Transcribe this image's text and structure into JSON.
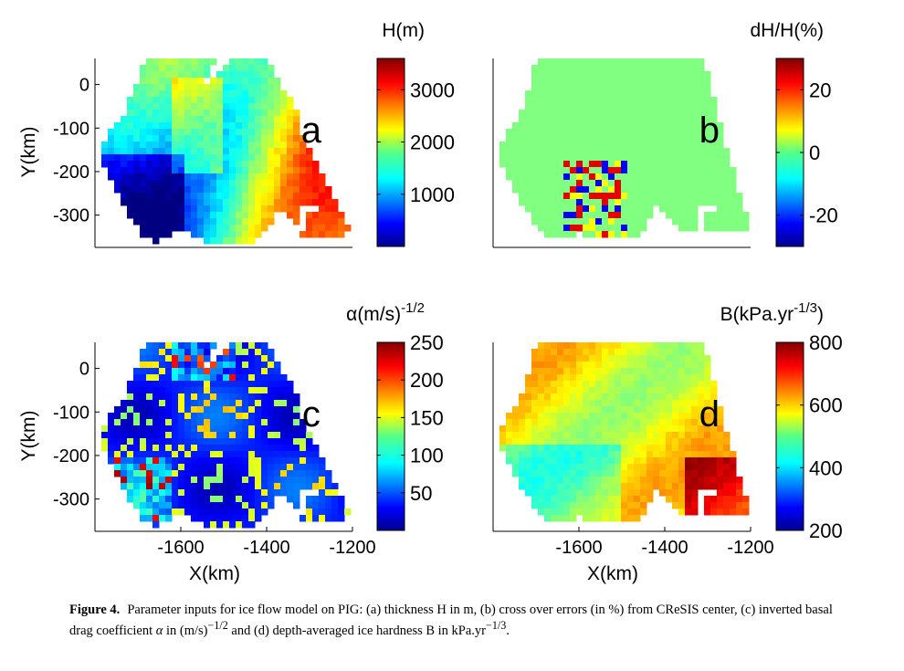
{
  "chart_data": [
    {
      "type": "heatmap",
      "panel_letter": "a",
      "colorbar_label": "H(m)",
      "colorbar_ticks": [
        "1000",
        "2000",
        "3000"
      ],
      "colorbar_tick_values": [
        1000,
        2000,
        3000
      ],
      "colorbar_range": [
        0,
        3600
      ],
      "field": "thickness",
      "ylabel": "Y(km)",
      "xlabel": "",
      "xlim": [
        -1800,
        -1200
      ],
      "ylim": [
        -370,
        60
      ],
      "xticks": [],
      "yticks": [
        {
          "value": 0,
          "label": "0"
        },
        {
          "value": -100,
          "label": "-100"
        },
        {
          "value": -200,
          "label": "-200"
        },
        {
          "value": -300,
          "label": "-300"
        }
      ]
    },
    {
      "type": "heatmap",
      "panel_letter": "b",
      "colorbar_label": "dH/H(%)",
      "colorbar_ticks": [
        "-20",
        "0",
        "20"
      ],
      "colorbar_tick_values": [
        -20,
        0,
        20
      ],
      "colorbar_range": [
        -30,
        30
      ],
      "field": "crossover",
      "ylabel": "",
      "xlabel": "",
      "xlim": [
        -1800,
        -1200
      ],
      "ylim": [
        -370,
        60
      ],
      "xticks": [],
      "yticks": []
    },
    {
      "type": "heatmap",
      "panel_letter": "c",
      "colorbar_label": "α(m/s)",
      "colorbar_label_exp": "-1/2",
      "colorbar_ticks": [
        "50",
        "100",
        "150",
        "200",
        "250"
      ],
      "colorbar_tick_values": [
        50,
        100,
        150,
        200,
        250
      ],
      "colorbar_range": [
        0,
        250
      ],
      "field": "drag",
      "ylabel": "Y(km)",
      "xlabel": "X(km)",
      "xlim": [
        -1800,
        -1200
      ],
      "ylim": [
        -370,
        60
      ],
      "xticks": [
        {
          "value": -1600,
          "label": "-1600"
        },
        {
          "value": -1400,
          "label": "-1400"
        },
        {
          "value": -1200,
          "label": "-1200"
        }
      ],
      "yticks": [
        {
          "value": 0,
          "label": "0"
        },
        {
          "value": -100,
          "label": "-100"
        },
        {
          "value": -200,
          "label": "-200"
        },
        {
          "value": -300,
          "label": "-300"
        }
      ]
    },
    {
      "type": "heatmap",
      "panel_letter": "d",
      "colorbar_label": "B(kPa.yr",
      "colorbar_label_exp": "-1/3",
      "colorbar_label_close": ")",
      "colorbar_ticks": [
        "200",
        "400",
        "600",
        "800"
      ],
      "colorbar_tick_values": [
        200,
        400,
        600,
        800
      ],
      "colorbar_range": [
        200,
        800
      ],
      "field": "hardness",
      "ylabel": "",
      "xlabel": "X(km)",
      "xlim": [
        -1800,
        -1200
      ],
      "ylim": [
        -370,
        60
      ],
      "xticks": [
        {
          "value": -1600,
          "label": "-1600"
        },
        {
          "value": -1400,
          "label": "-1400"
        },
        {
          "value": -1200,
          "label": "-1200"
        }
      ],
      "yticks": []
    }
  ],
  "caption": {
    "label": "Figure 4.",
    "p1": "Parameter inputs for ice flow model on PIG: (a) thickness H in m, (b) cross over errors (in %) from CReSIS center, (c) inverted basal drag coefficient ",
    "alpha": "α",
    "p2": " in (m/s)",
    "exp1": "−1/2",
    "p3": " and (d) depth-averaged ice hardness B in kPa.yr",
    "exp2": "−1/3",
    "p4": "."
  }
}
